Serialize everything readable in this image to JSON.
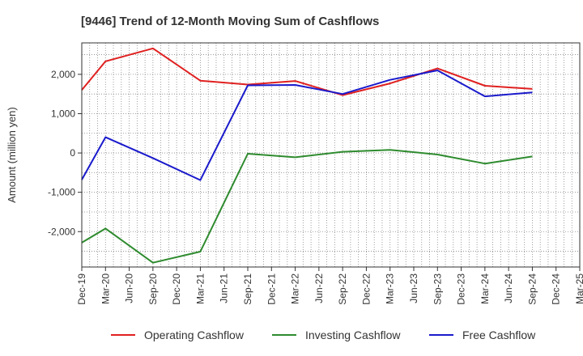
{
  "chart_data": {
    "type": "line",
    "title": "[9446]  Trend of 12-Month Moving Sum of Cashflows",
    "ylabel": "Amount (million yen)",
    "xlabel": "",
    "ylim": [
      -2900,
      2800
    ],
    "yticks": [
      -2000,
      -1000,
      0,
      1000,
      2000
    ],
    "ytick_labels": [
      "-2,000",
      "-1,000",
      "0",
      "1,000",
      "2,000"
    ],
    "grid": true,
    "legend_position": "bottom",
    "x_labels": [
      "Dec-19",
      "Mar-20",
      "Jun-20",
      "Sep-20",
      "Dec-20",
      "Mar-21",
      "Jun-21",
      "Sep-21",
      "Dec-21",
      "Mar-22",
      "Jun-22",
      "Sep-22",
      "Dec-22",
      "Mar-23",
      "Jun-23",
      "Sep-23",
      "Dec-23",
      "Mar-24",
      "Jun-24",
      "Sep-24",
      "Dec-24",
      "Mar-25"
    ],
    "series": [
      {
        "name": "Operating Cashflow",
        "color": "#e02020",
        "points": [
          [
            "Dec-19",
            1600
          ],
          [
            "Mar-20",
            2330
          ],
          [
            "Sep-20",
            2660
          ],
          [
            "Mar-21",
            1840
          ],
          [
            "Sep-21",
            1740
          ],
          [
            "Mar-22",
            1830
          ],
          [
            "Sep-22",
            1470
          ],
          [
            "Mar-23",
            1770
          ],
          [
            "Sep-23",
            2150
          ],
          [
            "Mar-24",
            1710
          ],
          [
            "Sep-24",
            1630
          ]
        ]
      },
      {
        "name": "Investing Cashflow",
        "color": "#2e8b2e",
        "points": [
          [
            "Dec-19",
            -2280
          ],
          [
            "Mar-20",
            -1920
          ],
          [
            "Sep-20",
            -2790
          ],
          [
            "Mar-21",
            -2510
          ],
          [
            "Sep-21",
            -20
          ],
          [
            "Mar-22",
            -110
          ],
          [
            "Sep-22",
            30
          ],
          [
            "Mar-23",
            80
          ],
          [
            "Sep-23",
            -40
          ],
          [
            "Mar-24",
            -270
          ],
          [
            "Sep-24",
            -90
          ]
        ]
      },
      {
        "name": "Free Cashflow",
        "color": "#1a1acc",
        "points": [
          [
            "Dec-19",
            -680
          ],
          [
            "Mar-20",
            400
          ],
          [
            "Sep-20",
            -130
          ],
          [
            "Mar-21",
            -690
          ],
          [
            "Sep-21",
            1720
          ],
          [
            "Mar-22",
            1730
          ],
          [
            "Sep-22",
            1500
          ],
          [
            "Mar-23",
            1860
          ],
          [
            "Sep-23",
            2100
          ],
          [
            "Mar-24",
            1440
          ],
          [
            "Sep-24",
            1540
          ]
        ]
      }
    ]
  }
}
